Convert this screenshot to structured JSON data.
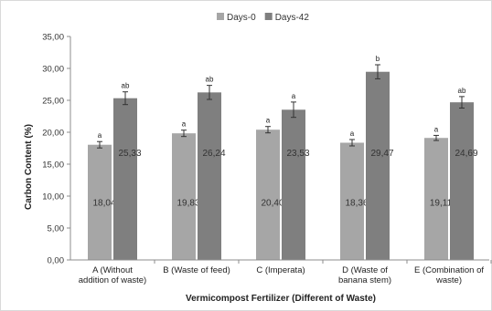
{
  "chart_data": {
    "type": "bar",
    "title": "",
    "xlabel": "Vermicompost Fertilizer (Different of Waste)",
    "ylabel": "Carbon  Content  (%)",
    "ylim": [
      0,
      35
    ],
    "yticks": [
      "0,00",
      "5,00",
      "10,00",
      "15,00",
      "20,00",
      "25,00",
      "30,00",
      "35,00"
    ],
    "categories": [
      [
        "A (Without",
        "addition of waste)"
      ],
      [
        "B (Waste of feed)"
      ],
      [
        "C (Imperata)"
      ],
      [
        "D (Waste of",
        "banana stem)"
      ],
      [
        "E (Combination  of",
        "waste)"
      ]
    ],
    "series": [
      {
        "name": "Days-0",
        "color": "#a6a6a6",
        "values": [
          18.04,
          19.83,
          20.4,
          18.36,
          19.11
        ],
        "errors": [
          0.5,
          0.5,
          0.5,
          0.5,
          0.4
        ],
        "labels": [
          "18,04",
          "19,83",
          "20,40",
          "18,36",
          "19,11"
        ],
        "significance": [
          "a",
          "a",
          "a",
          "a",
          "a"
        ]
      },
      {
        "name": "Days-42",
        "color": "#7f7f7f",
        "values": [
          25.33,
          26.24,
          23.53,
          29.47,
          24.69
        ],
        "errors": [
          1.0,
          1.1,
          1.2,
          1.1,
          0.9
        ],
        "labels": [
          "25,33",
          "26,24",
          "23,53",
          "29,47",
          "24,69"
        ],
        "significance": [
          "ab",
          "ab",
          "a",
          "b",
          "ab"
        ]
      }
    ],
    "legend_position": "top",
    "grid": false
  }
}
